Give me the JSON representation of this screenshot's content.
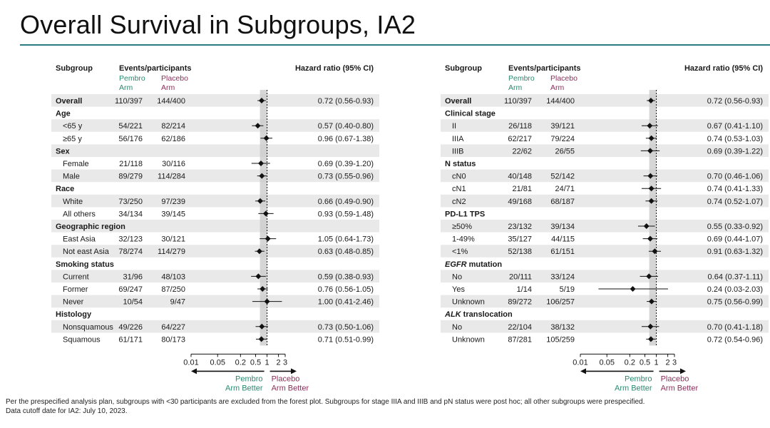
{
  "title": "Overall Survival in Subgroups, IA2",
  "colors": {
    "pembro": "#2a8a6f",
    "placebo": "#8b2e5a",
    "accent_rule": "#2c7a84",
    "row_shade": "#e9e9e9",
    "ref_band": "#c8c8c8"
  },
  "footnote": [
    "Per the prespecified analysis plan, subgroups with <30 participants are excluded from the forest plot. Subgroups for stage IIIA and IIIB and pN status were post hoc; all other subgroups were prespecified.",
    "Data cutoff date for IA2: July 10, 2023."
  ],
  "chart_data": [
    {
      "type": "forest",
      "header": {
        "subgroup": "Subgroup",
        "events": "Events/participants",
        "pembro": [
          "Pembro",
          "Arm"
        ],
        "placebo": [
          "Placebo",
          "Arm"
        ],
        "hr": "Hazard ratio (95% CI)"
      },
      "x_ticks": [
        "0.01",
        "0.05",
        "0.2",
        "0.5",
        "1",
        "2",
        "3"
      ],
      "x_tick_values": [
        0.01,
        0.05,
        0.2,
        0.5,
        1,
        2,
        3
      ],
      "xlim": [
        0.01,
        3
      ],
      "scale": "log",
      "reference_line": 1,
      "overall_line": 0.72,
      "favor_left": [
        "Pembro",
        "Arm Better"
      ],
      "favor_right": [
        "Placebo",
        "Arm Better"
      ],
      "rows": [
        {
          "kind": "overall",
          "label": "Overall",
          "pembro": "110/397",
          "placebo": "144/400",
          "hr": 0.72,
          "lo": 0.56,
          "hi": 0.93,
          "text": "0.72 (0.56-0.93)"
        },
        {
          "kind": "header",
          "label": "Age"
        },
        {
          "kind": "item",
          "label": "<65 y",
          "pembro": "54/221",
          "placebo": "82/214",
          "hr": 0.57,
          "lo": 0.4,
          "hi": 0.8,
          "text": "0.57 (0.40-0.80)"
        },
        {
          "kind": "item",
          "label": "≥65 y",
          "pembro": "56/176",
          "placebo": "62/186",
          "hr": 0.96,
          "lo": 0.67,
          "hi": 1.38,
          "text": "0.96 (0.67-1.38)"
        },
        {
          "kind": "header",
          "label": "Sex"
        },
        {
          "kind": "item",
          "label": "Female",
          "pembro": "21/118",
          "placebo": "30/116",
          "hr": 0.69,
          "lo": 0.39,
          "hi": 1.2,
          "text": "0.69 (0.39-1.20)"
        },
        {
          "kind": "item",
          "label": "Male",
          "pembro": "89/279",
          "placebo": "114/284",
          "hr": 0.73,
          "lo": 0.55,
          "hi": 0.96,
          "text": "0.73 (0.55-0.96)"
        },
        {
          "kind": "header",
          "label": "Race"
        },
        {
          "kind": "item",
          "label": "White",
          "pembro": "73/250",
          "placebo": "97/239",
          "hr": 0.66,
          "lo": 0.49,
          "hi": 0.9,
          "text": "0.66 (0.49-0.90)"
        },
        {
          "kind": "item",
          "label": "All others",
          "pembro": "34/134",
          "placebo": "39/145",
          "hr": 0.93,
          "lo": 0.59,
          "hi": 1.48,
          "text": "0.93 (0.59-1.48)"
        },
        {
          "kind": "header",
          "label": "Geographic region"
        },
        {
          "kind": "item",
          "label": "East Asia",
          "pembro": "32/123",
          "placebo": "30/121",
          "hr": 1.05,
          "lo": 0.64,
          "hi": 1.73,
          "text": "1.05 (0.64-1.73)"
        },
        {
          "kind": "item",
          "label": "Not east Asia",
          "pembro": "78/274",
          "placebo": "114/279",
          "hr": 0.63,
          "lo": 0.48,
          "hi": 0.85,
          "text": "0.63 (0.48-0.85)"
        },
        {
          "kind": "header",
          "label": "Smoking status"
        },
        {
          "kind": "item",
          "label": "Current",
          "pembro": "31/96",
          "placebo": "48/103",
          "hr": 0.59,
          "lo": 0.38,
          "hi": 0.93,
          "text": "0.59 (0.38-0.93)"
        },
        {
          "kind": "item",
          "label": "Former",
          "pembro": "69/247",
          "placebo": "87/250",
          "hr": 0.76,
          "lo": 0.56,
          "hi": 1.05,
          "text": "0.76 (0.56-1.05)"
        },
        {
          "kind": "item",
          "label": "Never",
          "pembro": "10/54",
          "placebo": "9/47",
          "hr": 1.0,
          "lo": 0.41,
          "hi": 2.46,
          "text": "1.00 (0.41-2.46)"
        },
        {
          "kind": "header",
          "label": "Histology"
        },
        {
          "kind": "item",
          "label": "Nonsquamous",
          "pembro": "49/226",
          "placebo": "64/227",
          "hr": 0.73,
          "lo": 0.5,
          "hi": 1.06,
          "text": "0.73 (0.50-1.06)"
        },
        {
          "kind": "item",
          "label": "Squamous",
          "pembro": "61/171",
          "placebo": "80/173",
          "hr": 0.71,
          "lo": 0.51,
          "hi": 0.99,
          "text": "0.71 (0.51-0.99)"
        }
      ]
    },
    {
      "type": "forest",
      "header": {
        "subgroup": "Subgroup",
        "events": "Events/participants",
        "pembro": [
          "Pembro",
          "Arm"
        ],
        "placebo": [
          "Placebo",
          "Arm"
        ],
        "hr": "Hazard ratio (95% CI)"
      },
      "x_ticks": [
        "0.01",
        "0.05",
        "0.2",
        "0.5",
        "1",
        "2",
        "3"
      ],
      "x_tick_values": [
        0.01,
        0.05,
        0.2,
        0.5,
        1,
        2,
        3
      ],
      "xlim": [
        0.01,
        3
      ],
      "scale": "log",
      "reference_line": 1,
      "overall_line": 0.72,
      "favor_left": [
        "Pembro",
        "Arm Better"
      ],
      "favor_right": [
        "Placebo",
        "Arm Better"
      ],
      "rows": [
        {
          "kind": "overall",
          "label": "Overall",
          "pembro": "110/397",
          "placebo": "144/400",
          "hr": 0.72,
          "lo": 0.56,
          "hi": 0.93,
          "text": "0.72 (0.56-0.93)"
        },
        {
          "kind": "header",
          "label": "Clinical stage"
        },
        {
          "kind": "item",
          "label": "II",
          "pembro": "26/118",
          "placebo": "39/121",
          "hr": 0.67,
          "lo": 0.41,
          "hi": 1.1,
          "text": "0.67 (0.41-1.10)"
        },
        {
          "kind": "item",
          "label": "IIIA",
          "pembro": "62/217",
          "placebo": "79/224",
          "hr": 0.74,
          "lo": 0.53,
          "hi": 1.03,
          "text": "0.74 (0.53-1.03)"
        },
        {
          "kind": "item",
          "label": "IIIB",
          "pembro": "22/62",
          "placebo": "26/55",
          "hr": 0.69,
          "lo": 0.39,
          "hi": 1.22,
          "text": "0.69 (0.39-1.22)"
        },
        {
          "kind": "header",
          "label": "N status"
        },
        {
          "kind": "item",
          "label": "cN0",
          "pembro": "40/148",
          "placebo": "52/142",
          "hr": 0.7,
          "lo": 0.46,
          "hi": 1.06,
          "text": "0.70 (0.46-1.06)"
        },
        {
          "kind": "item",
          "label": "cN1",
          "pembro": "21/81",
          "placebo": "24/71",
          "hr": 0.74,
          "lo": 0.41,
          "hi": 1.33,
          "text": "0.74 (0.41-1.33)"
        },
        {
          "kind": "item",
          "label": "cN2",
          "pembro": "49/168",
          "placebo": "68/187",
          "hr": 0.74,
          "lo": 0.52,
          "hi": 1.07,
          "text": "0.74 (0.52-1.07)"
        },
        {
          "kind": "header",
          "label": "PD-L1 TPS"
        },
        {
          "kind": "item",
          "label": "≥50%",
          "pembro": "23/132",
          "placebo": "39/134",
          "hr": 0.55,
          "lo": 0.33,
          "hi": 0.92,
          "text": "0.55 (0.33-0.92)"
        },
        {
          "kind": "item",
          "label": "1-49%",
          "pembro": "35/127",
          "placebo": "44/115",
          "hr": 0.69,
          "lo": 0.44,
          "hi": 1.07,
          "text": "0.69 (0.44-1.07)"
        },
        {
          "kind": "item",
          "label": "<1%",
          "pembro": "52/138",
          "placebo": "61/151",
          "hr": 0.91,
          "lo": 0.63,
          "hi": 1.32,
          "text": "0.91 (0.63-1.32)"
        },
        {
          "kind": "header",
          "label": "EGFR mutation",
          "italic_word": "EGFR",
          "rest": " mutation"
        },
        {
          "kind": "item",
          "label": "No",
          "pembro": "20/111",
          "placebo": "33/124",
          "hr": 0.64,
          "lo": 0.37,
          "hi": 1.11,
          "text": "0.64 (0.37-1.11)"
        },
        {
          "kind": "item",
          "label": "Yes",
          "pembro": "1/14",
          "placebo": "5/19",
          "hr": 0.24,
          "lo": 0.03,
          "hi": 2.03,
          "text": "0.24 (0.03-2.03)"
        },
        {
          "kind": "item",
          "label": "Unknown",
          "pembro": "89/272",
          "placebo": "106/257",
          "hr": 0.75,
          "lo": 0.56,
          "hi": 0.99,
          "text": "0.75 (0.56-0.99)"
        },
        {
          "kind": "header",
          "label": "ALK translocation",
          "italic_word": "ALK",
          "rest": " translocation"
        },
        {
          "kind": "item",
          "label": "No",
          "pembro": "22/104",
          "placebo": "38/132",
          "hr": 0.7,
          "lo": 0.41,
          "hi": 1.18,
          "text": "0.70 (0.41-1.18)"
        },
        {
          "kind": "item",
          "label": "Unknown",
          "pembro": "87/281",
          "placebo": "105/259",
          "hr": 0.72,
          "lo": 0.54,
          "hi": 0.96,
          "text": "0.72 (0.54-0.96)"
        }
      ]
    }
  ]
}
